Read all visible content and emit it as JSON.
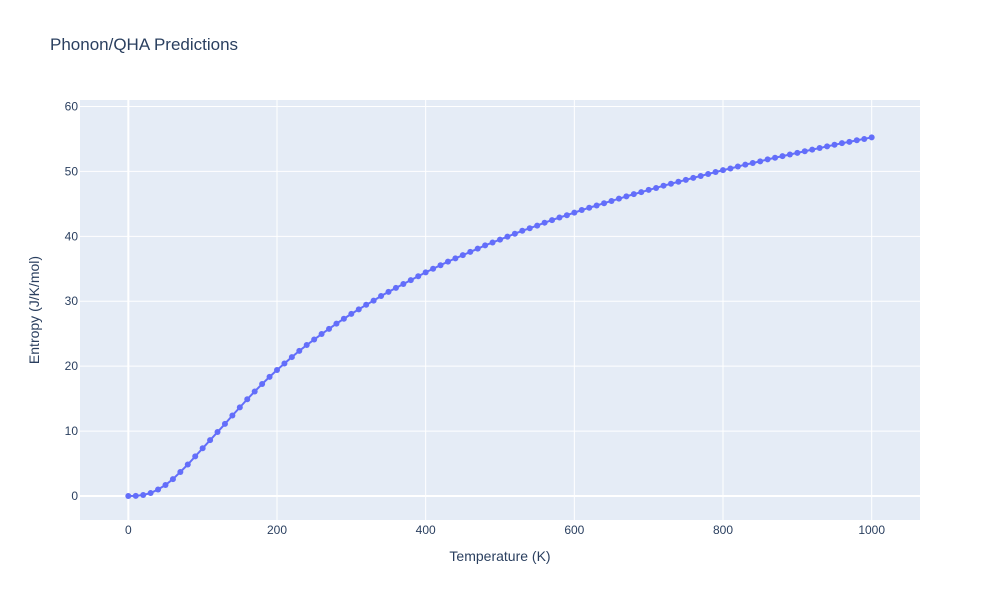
{
  "chart_data": {
    "type": "line",
    "title": "Phonon/QHA Predictions",
    "xlabel": "Temperature (K)",
    "ylabel": "Entropy (J/K/mol)",
    "xlim": [
      -65,
      1065
    ],
    "ylim": [
      -3.7,
      61
    ],
    "xticks": [
      0,
      200,
      400,
      600,
      800,
      1000
    ],
    "yticks": [
      0,
      10,
      20,
      30,
      40,
      50,
      60
    ],
    "grid": true,
    "background": "#e5ecf6",
    "colors": {
      "series": "#636efa",
      "text": "#2a3f5f"
    },
    "series": [
      {
        "mode": "lines+markers",
        "x": [
          0,
          10,
          20,
          30,
          40,
          50,
          60,
          70,
          80,
          90,
          100,
          110,
          120,
          130,
          140,
          150,
          160,
          170,
          180,
          190,
          200,
          210,
          220,
          230,
          240,
          250,
          260,
          270,
          280,
          290,
          300,
          310,
          320,
          330,
          340,
          350,
          360,
          370,
          380,
          390,
          400,
          410,
          420,
          430,
          440,
          450,
          460,
          470,
          480,
          490,
          500,
          510,
          520,
          530,
          540,
          550,
          560,
          570,
          580,
          590,
          600,
          610,
          620,
          630,
          640,
          650,
          660,
          670,
          680,
          690,
          700,
          710,
          720,
          730,
          740,
          750,
          760,
          770,
          780,
          790,
          800,
          810,
          820,
          830,
          840,
          850,
          860,
          870,
          880,
          890,
          900,
          910,
          920,
          930,
          940,
          950,
          960,
          970,
          980,
          990,
          1000
        ],
        "y": [
          0,
          0.02,
          0.15,
          0.45,
          1.0,
          1.7,
          2.6,
          3.7,
          4.85,
          6.1,
          7.35,
          8.6,
          9.85,
          11.1,
          12.4,
          13.65,
          14.9,
          16.1,
          17.25,
          18.35,
          19.4,
          20.4,
          21.4,
          22.35,
          23.25,
          24.1,
          24.95,
          25.75,
          26.55,
          27.3,
          28.05,
          28.75,
          29.45,
          30.1,
          30.8,
          31.45,
          32.05,
          32.65,
          33.25,
          33.85,
          34.45,
          35.0,
          35.55,
          36.1,
          36.6,
          37.1,
          37.6,
          38.1,
          38.6,
          39.05,
          39.5,
          39.95,
          40.4,
          40.85,
          41.25,
          41.65,
          42.1,
          42.5,
          42.9,
          43.25,
          43.65,
          44.05,
          44.4,
          44.75,
          45.1,
          45.45,
          45.8,
          46.15,
          46.5,
          46.8,
          47.15,
          47.45,
          47.8,
          48.1,
          48.4,
          48.7,
          49.0,
          49.3,
          49.6,
          49.9,
          50.2,
          50.45,
          50.75,
          51.05,
          51.3,
          51.55,
          51.85,
          52.1,
          52.35,
          52.6,
          52.85,
          53.1,
          53.35,
          53.6,
          53.85,
          54.1,
          54.35,
          54.55,
          54.8,
          55.0,
          55.25
        ]
      }
    ]
  }
}
